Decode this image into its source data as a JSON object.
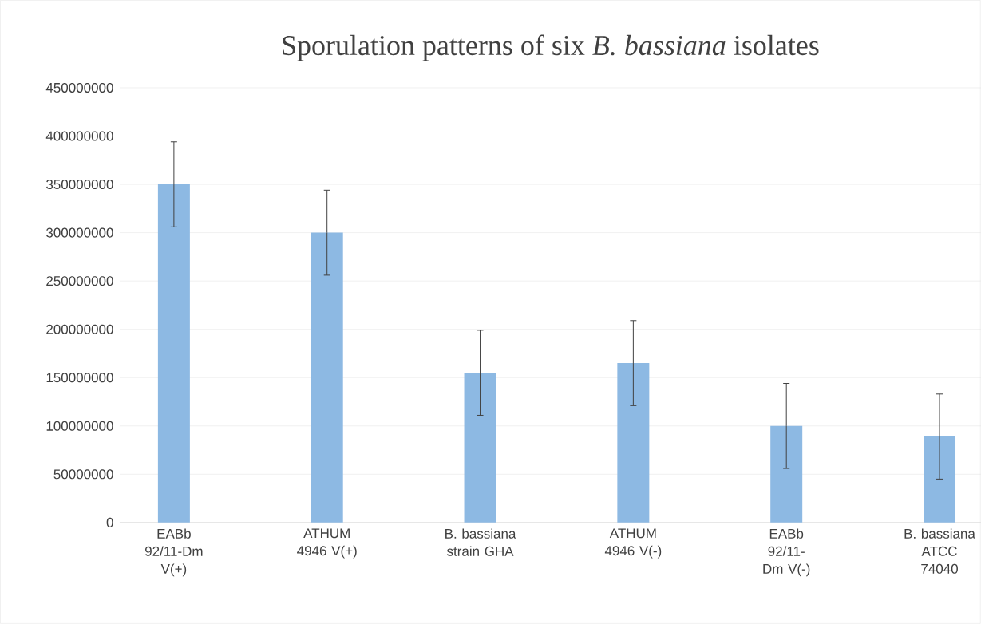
{
  "chart_data": {
    "type": "bar",
    "title": "Sporulation patterns of six *B. bassiana* isolates",
    "categories": [
      "EABb 92/11-Dm V(+)",
      "ATHUM 4946 V(+)",
      "B. bassiana strain GHA",
      "ATHUM 4946 V(-)",
      "EABb 92/11-Dm V(-)",
      "B. bassiana ATCC 74040"
    ],
    "values": [
      350000000,
      300000000,
      155000000,
      165000000,
      100000000,
      89000000
    ],
    "errors": [
      44000000,
      44000000,
      44000000,
      44000000,
      44000000,
      44000000
    ],
    "color": "#8db9e3",
    "ylim": [
      0,
      450000000
    ],
    "yticks": [
      0,
      50000000,
      100000000,
      150000000,
      200000000,
      250000000,
      300000000,
      350000000,
      400000000,
      450000000
    ],
    "grid": "y"
  }
}
